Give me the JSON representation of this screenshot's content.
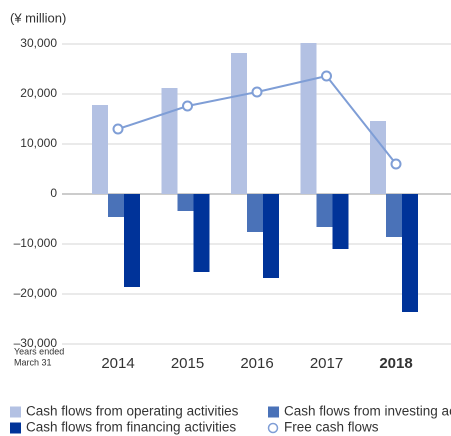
{
  "chart_data": {
    "type": "bar",
    "ylabel": "(¥ million)",
    "xlabel": [
      "Years ended",
      "March 31"
    ],
    "categories": [
      "2014",
      "2015",
      "2016",
      "2017",
      "2018"
    ],
    "bold_categories": [
      "2018"
    ],
    "series": [
      {
        "name": "Cash flows from operating activities",
        "color": "#b3c1e3",
        "values": [
          17800,
          21200,
          28200,
          30200,
          14600
        ]
      },
      {
        "name": "Cash flows from investing activities",
        "color": "#4a72b8",
        "values": [
          -4600,
          -3400,
          -7600,
          -6600,
          -8600
        ]
      },
      {
        "name": "Cash flows from financing activities",
        "color": "#003399",
        "values": [
          -18600,
          -15600,
          -16800,
          -11000,
          -23600
        ]
      },
      {
        "name": "Free cash flows",
        "type": "line",
        "color": "#7f9ed6",
        "values": [
          13000,
          17600,
          20400,
          23600,
          6000
        ]
      }
    ],
    "ylim": [
      -30000,
      30000
    ],
    "yticks": [
      {
        "value": -30000,
        "label": "–30,000"
      },
      {
        "value": -20000,
        "label": "–20,000"
      },
      {
        "value": -10000,
        "label": "–10,000"
      },
      0,
      {
        "value": 10000,
        "label": "10,000"
      },
      {
        "value": 20000,
        "label": "20,000"
      },
      {
        "value": 30000,
        "label": "30,000"
      }
    ],
    "grid": true
  }
}
